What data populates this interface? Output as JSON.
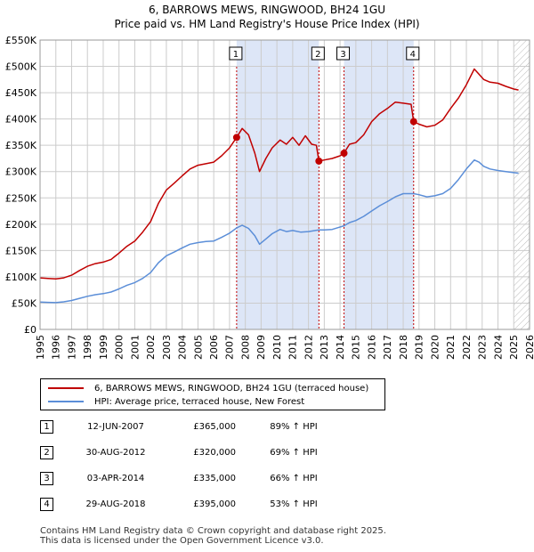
{
  "title": {
    "line1": "6, BARROWS MEWS, RINGWOOD, BH24 1GU",
    "line2": "Price paid vs. HM Land Registry's House Price Index (HPI)"
  },
  "colors": {
    "price_paid": "#c00000",
    "hpi": "#5b8ed8",
    "shade": "#dde6f7",
    "grid": "#cccccc"
  },
  "legend": {
    "items": [
      {
        "label": "6, BARROWS MEWS, RINGWOOD, BH24 1GU (terraced house)"
      },
      {
        "label": "HPI: Average price, terraced house, New Forest"
      }
    ]
  },
  "transactions": [
    {
      "num": "1",
      "date": "12-JUN-2007",
      "price": "£365,000",
      "hpi": "89% ↑ HPI"
    },
    {
      "num": "2",
      "date": "30-AUG-2012",
      "price": "£320,000",
      "hpi": "69% ↑ HPI"
    },
    {
      "num": "3",
      "date": "03-APR-2014",
      "price": "£335,000",
      "hpi": "66% ↑ HPI"
    },
    {
      "num": "4",
      "date": "29-AUG-2018",
      "price": "£395,000",
      "hpi": "53% ↑ HPI"
    }
  ],
  "footer": {
    "line1": "Contains HM Land Registry data © Crown copyright and database right 2025.",
    "line2": "This data is licensed under the Open Government Licence v3.0."
  },
  "chart_data": {
    "type": "line",
    "title": "6, BARROWS MEWS, RINGWOOD, BH24 1GU",
    "subtitle": "Price paid vs. HM Land Registry's House Price Index (HPI)",
    "xlabel": "",
    "ylabel": "",
    "xlim": [
      1995,
      2026
    ],
    "ylim": [
      0,
      550000
    ],
    "x_ticks": [
      1995,
      1996,
      1997,
      1998,
      1999,
      2000,
      2001,
      2002,
      2003,
      2004,
      2005,
      2006,
      2007,
      2008,
      2009,
      2010,
      2011,
      2012,
      2013,
      2014,
      2015,
      2016,
      2017,
      2018,
      2019,
      2020,
      2021,
      2022,
      2023,
      2024,
      2025,
      2026
    ],
    "y_ticks": [
      {
        "value": 0,
        "label": "£0"
      },
      {
        "value": 50000,
        "label": "£50K"
      },
      {
        "value": 100000,
        "label": "£100K"
      },
      {
        "value": 150000,
        "label": "£150K"
      },
      {
        "value": 200000,
        "label": "£200K"
      },
      {
        "value": 250000,
        "label": "£250K"
      },
      {
        "value": 300000,
        "label": "£300K"
      },
      {
        "value": 350000,
        "label": "£350K"
      },
      {
        "value": 400000,
        "label": "£400K"
      },
      {
        "value": 450000,
        "label": "£450K"
      },
      {
        "value": 500000,
        "label": "£500K"
      },
      {
        "value": 550000,
        "label": "£550K"
      }
    ],
    "grid": true,
    "shaded_periods": [
      [
        2007.45,
        2012.66
      ],
      [
        2014.25,
        2018.66
      ]
    ],
    "future_hatch_from": 2025.0,
    "sale_markers": [
      {
        "label": "1",
        "x": 2007.45,
        "y": 365000
      },
      {
        "label": "2",
        "x": 2012.66,
        "y": 320000
      },
      {
        "label": "3",
        "x": 2014.25,
        "y": 335000
      },
      {
        "label": "4",
        "x": 2018.66,
        "y": 395000
      }
    ],
    "series": [
      {
        "name": "6, BARROWS MEWS, RINGWOOD, BH24 1GU (terraced house)",
        "color": "#c00000",
        "points": [
          [
            1995.0,
            98000
          ],
          [
            1995.5,
            97000
          ],
          [
            1996.0,
            96000
          ],
          [
            1996.5,
            98000
          ],
          [
            1997.0,
            103000
          ],
          [
            1997.5,
            112000
          ],
          [
            1998.0,
            120000
          ],
          [
            1998.5,
            125000
          ],
          [
            1999.0,
            128000
          ],
          [
            1999.5,
            133000
          ],
          [
            2000.0,
            145000
          ],
          [
            2000.5,
            158000
          ],
          [
            2001.0,
            168000
          ],
          [
            2001.5,
            185000
          ],
          [
            2002.0,
            205000
          ],
          [
            2002.5,
            240000
          ],
          [
            2003.0,
            265000
          ],
          [
            2003.5,
            278000
          ],
          [
            2004.0,
            292000
          ],
          [
            2004.5,
            305000
          ],
          [
            2005.0,
            312000
          ],
          [
            2005.5,
            315000
          ],
          [
            2006.0,
            318000
          ],
          [
            2006.5,
            330000
          ],
          [
            2007.0,
            345000
          ],
          [
            2007.45,
            365000
          ],
          [
            2007.8,
            382000
          ],
          [
            2008.2,
            370000
          ],
          [
            2008.6,
            335000
          ],
          [
            2008.9,
            300000
          ],
          [
            2009.3,
            325000
          ],
          [
            2009.7,
            345000
          ],
          [
            2010.2,
            360000
          ],
          [
            2010.6,
            352000
          ],
          [
            2011.0,
            365000
          ],
          [
            2011.4,
            350000
          ],
          [
            2011.8,
            368000
          ],
          [
            2012.2,
            352000
          ],
          [
            2012.5,
            350000
          ],
          [
            2012.66,
            320000
          ],
          [
            2013.0,
            322000
          ],
          [
            2013.5,
            325000
          ],
          [
            2014.0,
            330000
          ],
          [
            2014.25,
            335000
          ],
          [
            2014.6,
            352000
          ],
          [
            2015.0,
            355000
          ],
          [
            2015.5,
            370000
          ],
          [
            2016.0,
            395000
          ],
          [
            2016.5,
            410000
          ],
          [
            2017.0,
            420000
          ],
          [
            2017.5,
            432000
          ],
          [
            2018.0,
            430000
          ],
          [
            2018.5,
            428000
          ],
          [
            2018.66,
            395000
          ],
          [
            2019.0,
            390000
          ],
          [
            2019.5,
            385000
          ],
          [
            2020.0,
            388000
          ],
          [
            2020.5,
            398000
          ],
          [
            2021.0,
            420000
          ],
          [
            2021.5,
            440000
          ],
          [
            2022.0,
            465000
          ],
          [
            2022.5,
            495000
          ],
          [
            2022.8,
            485000
          ],
          [
            2023.1,
            475000
          ],
          [
            2023.5,
            470000
          ],
          [
            2024.0,
            468000
          ],
          [
            2024.5,
            462000
          ],
          [
            2025.0,
            457000
          ],
          [
            2025.3,
            455000
          ]
        ]
      },
      {
        "name": "HPI: Average price, terraced house, New Forest",
        "color": "#5b8ed8",
        "points": [
          [
            1995.0,
            52000
          ],
          [
            1995.5,
            51500
          ],
          [
            1996.0,
            51000
          ],
          [
            1996.5,
            52500
          ],
          [
            1997.0,
            55000
          ],
          [
            1997.5,
            59000
          ],
          [
            1998.0,
            63000
          ],
          [
            1998.5,
            66000
          ],
          [
            1999.0,
            68000
          ],
          [
            1999.5,
            71000
          ],
          [
            2000.0,
            77000
          ],
          [
            2000.5,
            84000
          ],
          [
            2001.0,
            89000
          ],
          [
            2001.5,
            97000
          ],
          [
            2002.0,
            108000
          ],
          [
            2002.5,
            127000
          ],
          [
            2003.0,
            140000
          ],
          [
            2003.5,
            147000
          ],
          [
            2004.0,
            155000
          ],
          [
            2004.5,
            162000
          ],
          [
            2005.0,
            165000
          ],
          [
            2005.5,
            167000
          ],
          [
            2006.0,
            168000
          ],
          [
            2006.5,
            175000
          ],
          [
            2007.0,
            183000
          ],
          [
            2007.45,
            193000
          ],
          [
            2007.8,
            198000
          ],
          [
            2008.2,
            192000
          ],
          [
            2008.6,
            178000
          ],
          [
            2008.9,
            162000
          ],
          [
            2009.3,
            172000
          ],
          [
            2009.7,
            182000
          ],
          [
            2010.2,
            190000
          ],
          [
            2010.6,
            186000
          ],
          [
            2011.0,
            188000
          ],
          [
            2011.5,
            185000
          ],
          [
            2012.0,
            186000
          ],
          [
            2012.66,
            189000
          ],
          [
            2013.0,
            189000
          ],
          [
            2013.5,
            190000
          ],
          [
            2014.25,
            197000
          ],
          [
            2014.6,
            203000
          ],
          [
            2015.0,
            207000
          ],
          [
            2015.5,
            215000
          ],
          [
            2016.0,
            225000
          ],
          [
            2016.5,
            235000
          ],
          [
            2017.0,
            243000
          ],
          [
            2017.5,
            252000
          ],
          [
            2018.0,
            258000
          ],
          [
            2018.66,
            258000
          ],
          [
            2019.0,
            256000
          ],
          [
            2019.5,
            252000
          ],
          [
            2020.0,
            254000
          ],
          [
            2020.5,
            258000
          ],
          [
            2021.0,
            268000
          ],
          [
            2021.5,
            285000
          ],
          [
            2022.0,
            305000
          ],
          [
            2022.5,
            322000
          ],
          [
            2022.8,
            318000
          ],
          [
            2023.1,
            310000
          ],
          [
            2023.5,
            305000
          ],
          [
            2024.0,
            302000
          ],
          [
            2024.5,
            300000
          ],
          [
            2025.0,
            298000
          ],
          [
            2025.3,
            297000
          ]
        ]
      }
    ]
  }
}
